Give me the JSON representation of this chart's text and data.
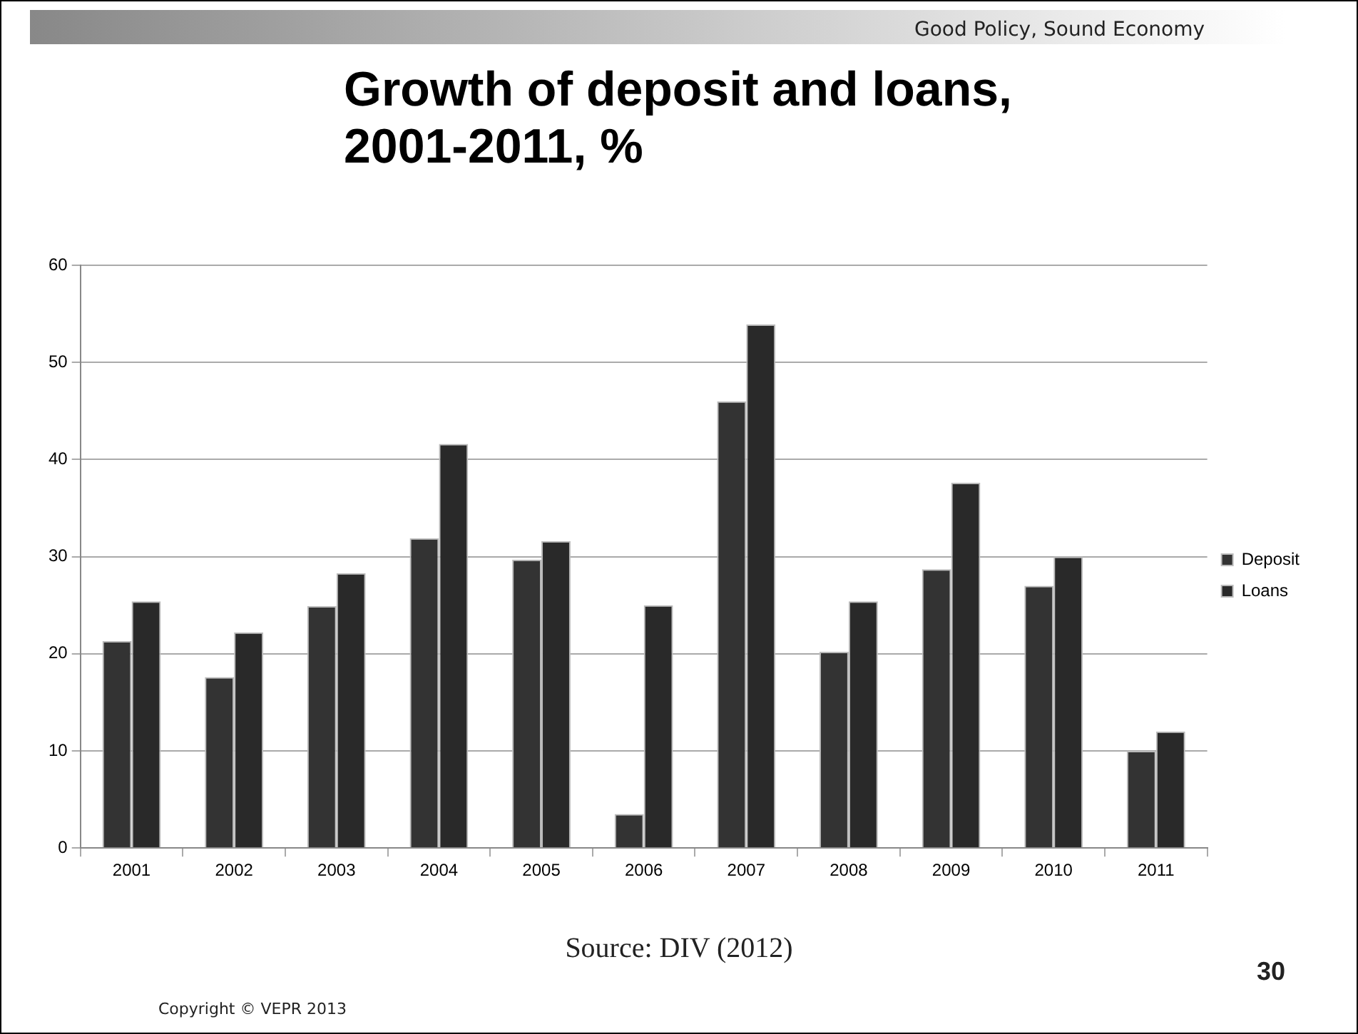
{
  "chart_data": {
    "type": "bar",
    "title": "Growth of deposit and loans, 2001-2011, %",
    "categories": [
      "2001",
      "2002",
      "2003",
      "2004",
      "2005",
      "2006",
      "2007",
      "2008",
      "2009",
      "2010",
      "2011"
    ],
    "series": [
      {
        "name": "Deposit",
        "color": "#333333",
        "values": [
          21.3,
          17.6,
          24.9,
          31.9,
          29.7,
          3.5,
          46.0,
          20.2,
          28.7,
          27.0,
          10.0
        ]
      },
      {
        "name": "Loans",
        "color": "#292929",
        "values": [
          25.4,
          22.2,
          28.3,
          41.6,
          31.6,
          25.0,
          53.9,
          25.4,
          37.6,
          30.0,
          12.0
        ]
      }
    ],
    "ylim": [
      0,
      60
    ],
    "yticks": [
      0,
      10,
      20,
      30,
      40,
      50,
      60
    ],
    "grid": "y",
    "legend": "right",
    "annotations": [
      "Good Policy, Sound Economy",
      "Source: DIV (2012)",
      "30",
      "Copyright © VEPR 2013"
    ]
  }
}
